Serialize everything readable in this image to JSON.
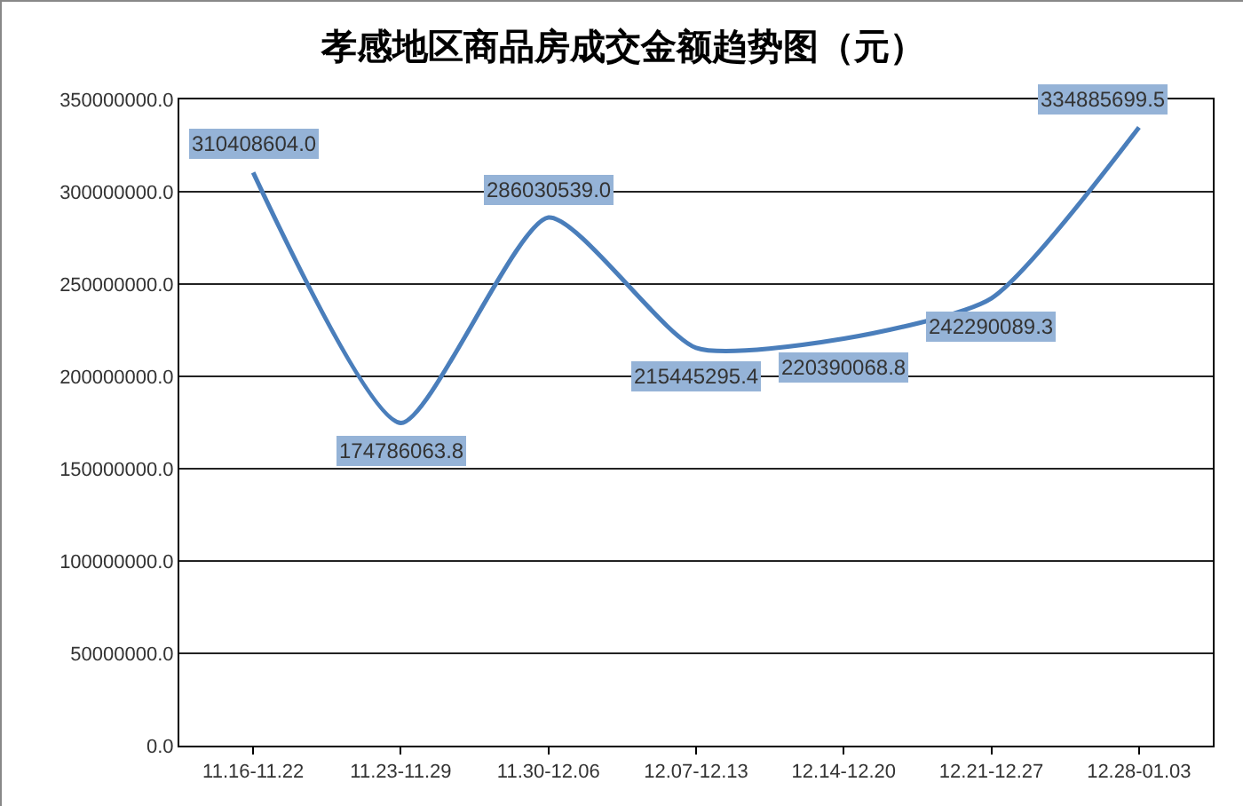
{
  "chart_data": {
    "type": "line",
    "title": "孝感地区商品房成交金额趋势图（元）",
    "categories": [
      "11.16-11.22",
      "11.23-11.29",
      "11.30-12.06",
      "12.07-12.13",
      "12.14-12.20",
      "12.21-12.27",
      "12.28-01.03"
    ],
    "series": [
      {
        "color": "#4a7ebb",
        "values": [
          310408604.0,
          174786063.8,
          286030539.0,
          215445295.4,
          220390068.8,
          242290089.3,
          334885699.5
        ],
        "value_labels": [
          "310408604.0",
          "174786063.8",
          "286030539.0",
          "215445295.4",
          "220390068.8",
          "242290089.3",
          "334885699.5"
        ]
      }
    ],
    "ylim": [
      0,
      350000000
    ],
    "yticks": [
      {
        "value": 0,
        "label": "0.0"
      },
      {
        "value": 50000000,
        "label": "50000000.0"
      },
      {
        "value": 100000000,
        "label": "100000000.0"
      },
      {
        "value": 150000000,
        "label": "150000000.0"
      },
      {
        "value": 200000000,
        "label": "200000000.0"
      },
      {
        "value": 250000000,
        "label": "250000000.0"
      },
      {
        "value": 300000000,
        "label": "300000000.0"
      },
      {
        "value": 350000000,
        "label": "350000000.0"
      }
    ],
    "grid": "y",
    "marker": "none",
    "line_style": "solid"
  }
}
